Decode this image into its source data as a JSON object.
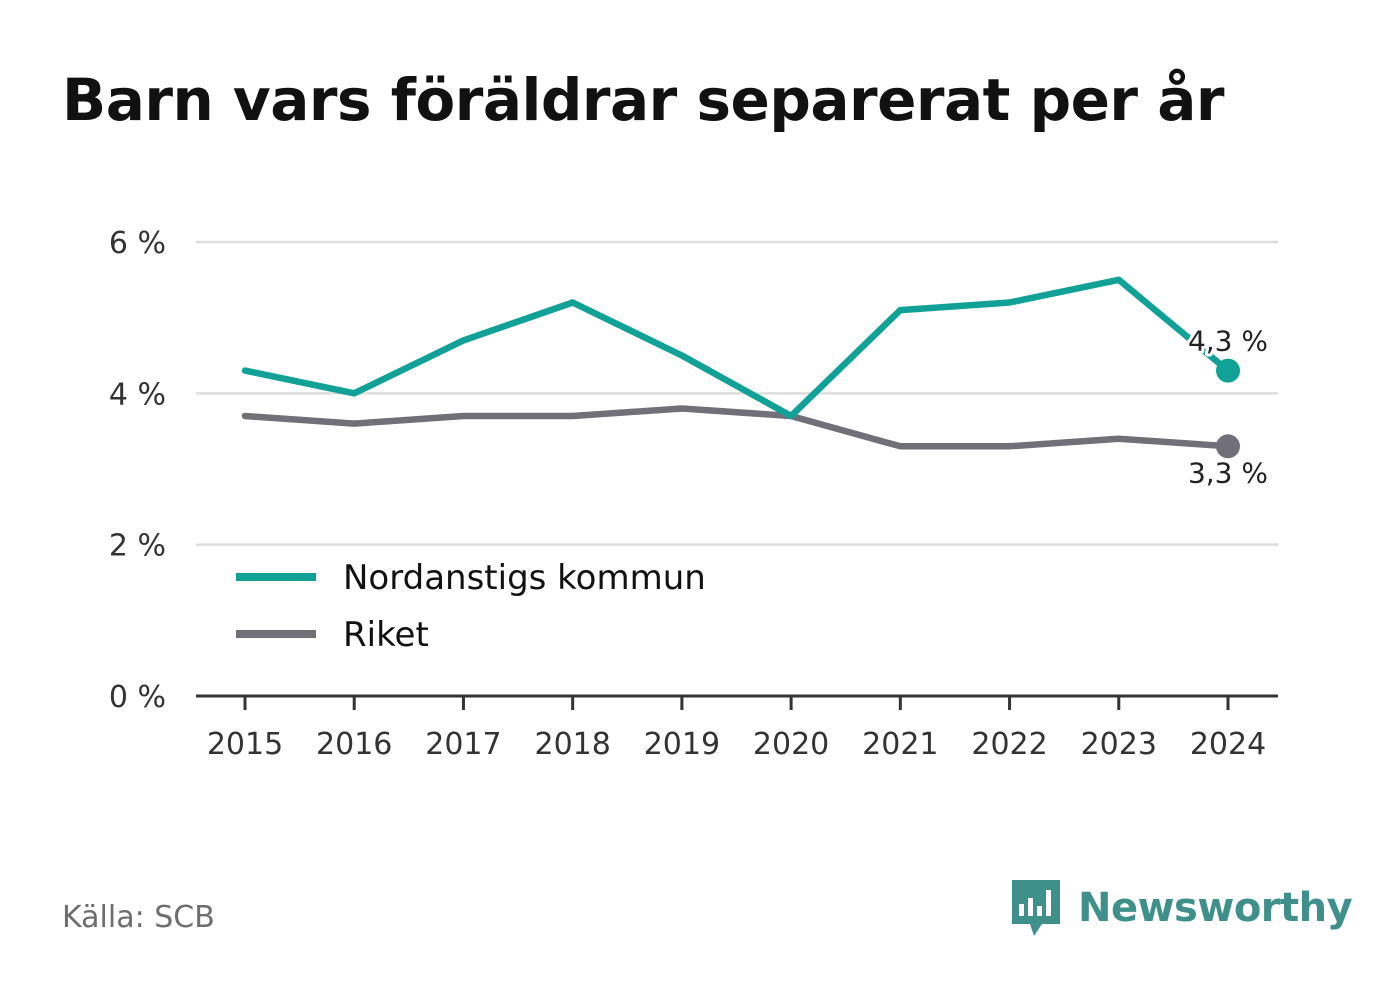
{
  "title": "Barn vars föräldrar separerat per år",
  "source": "Källa: SCB",
  "brand": {
    "name": "Newsworthy",
    "icon": "newsworthy-logo-icon",
    "color": "#3f8f8a"
  },
  "chart_data": {
    "type": "line",
    "title": "Barn vars föräldrar separerat per år",
    "categories": [
      "2015",
      "2016",
      "2017",
      "2018",
      "2019",
      "2020",
      "2021",
      "2022",
      "2023",
      "2024"
    ],
    "y_ticks": [
      {
        "value": 0,
        "label": "0 %"
      },
      {
        "value": 2,
        "label": "2 %"
      },
      {
        "value": 4,
        "label": "4 %"
      },
      {
        "value": 6,
        "label": "6 %"
      }
    ],
    "ylim": [
      0,
      6
    ],
    "grid": true,
    "legend_position": "bottom-left",
    "series": [
      {
        "name": "Nordanstigs kommun",
        "color": "#12a197",
        "values": [
          4.3,
          4.0,
          4.7,
          5.2,
          4.5,
          3.7,
          5.1,
          5.2,
          5.5,
          4.3
        ],
        "end_label": "4,3 %"
      },
      {
        "name": "Riket",
        "color": "#717079",
        "values": [
          3.7,
          3.6,
          3.7,
          3.7,
          3.8,
          3.7,
          3.3,
          3.3,
          3.4,
          3.3
        ],
        "end_label": "3,3 %"
      }
    ]
  }
}
